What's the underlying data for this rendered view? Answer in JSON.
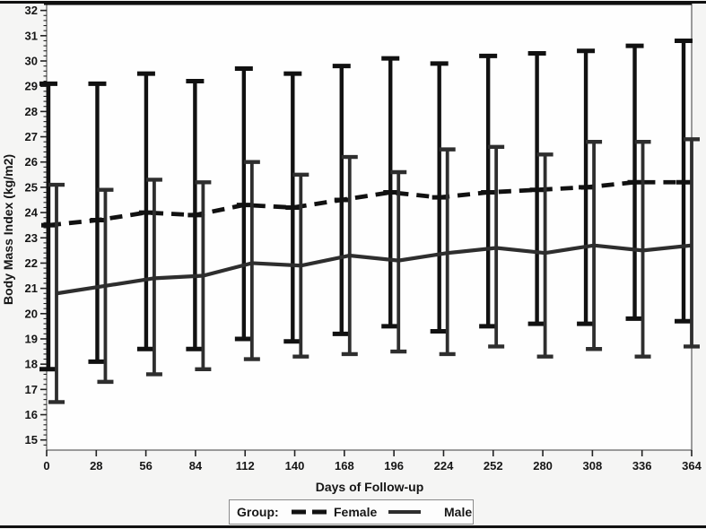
{
  "figure": {
    "type": "scanned statistical figure",
    "background": "#f5f5f4",
    "border_color": "#101010"
  },
  "chart_data": {
    "type": "line",
    "title": "",
    "xlabel": "Days of Follow-up",
    "ylabel": "Body Mass Index (kg/m2)",
    "xlim": [
      0,
      364
    ],
    "ylim": [
      15,
      32
    ],
    "x_tick_interval": 28,
    "y_tick_interval": 1,
    "y_minor_tick_interval": 0.2,
    "grid": "off",
    "error_bars": true,
    "x": [
      0,
      28,
      56,
      84,
      112,
      140,
      168,
      196,
      224,
      252,
      280,
      308,
      336,
      364
    ],
    "x_tick_labels": [
      "0",
      "28",
      "56",
      "84",
      "112",
      "140",
      "168",
      "196",
      "224",
      "252",
      "280",
      "308",
      "336",
      "364"
    ],
    "y_tick_labels": [
      "15",
      "16",
      "17",
      "18",
      "19",
      "20",
      "21",
      "22",
      "23",
      "24",
      "25",
      "26",
      "27",
      "28",
      "29",
      "30",
      "31",
      "32"
    ],
    "legend": {
      "label": "Group:",
      "position": "bottom-center",
      "entries": [
        {
          "name": "Female",
          "style": "dashed"
        },
        {
          "name": "Male",
          "style": "solid"
        }
      ]
    },
    "series": [
      {
        "name": "Female",
        "line": "dashed",
        "color": "#111111",
        "means": [
          23.5,
          23.7,
          24.0,
          23.9,
          24.3,
          24.2,
          24.5,
          24.8,
          24.6,
          24.8,
          24.9,
          25.0,
          25.2,
          25.2
        ],
        "upper": [
          29.1,
          29.1,
          29.5,
          29.2,
          29.7,
          29.5,
          29.8,
          30.1,
          29.9,
          30.2,
          30.3,
          30.4,
          30.6,
          30.8
        ],
        "lower": [
          17.8,
          18.1,
          18.6,
          18.6,
          19.0,
          18.9,
          19.2,
          19.5,
          19.3,
          19.5,
          19.6,
          19.6,
          19.8,
          19.7
        ]
      },
      {
        "name": "Male",
        "line": "solid",
        "color": "#2e2e2e",
        "means": [
          20.8,
          21.1,
          21.4,
          21.5,
          22.0,
          21.9,
          22.3,
          22.1,
          22.4,
          22.6,
          22.4,
          22.7,
          22.5,
          22.7
        ],
        "upper": [
          25.1,
          24.9,
          25.3,
          25.2,
          26.0,
          25.5,
          26.2,
          25.6,
          26.5,
          26.6,
          26.3,
          26.8,
          26.8,
          26.9
        ],
        "lower": [
          16.5,
          17.3,
          17.6,
          17.8,
          18.2,
          18.3,
          18.4,
          18.5,
          18.4,
          18.7,
          18.3,
          18.6,
          18.3,
          18.7
        ]
      }
    ]
  }
}
